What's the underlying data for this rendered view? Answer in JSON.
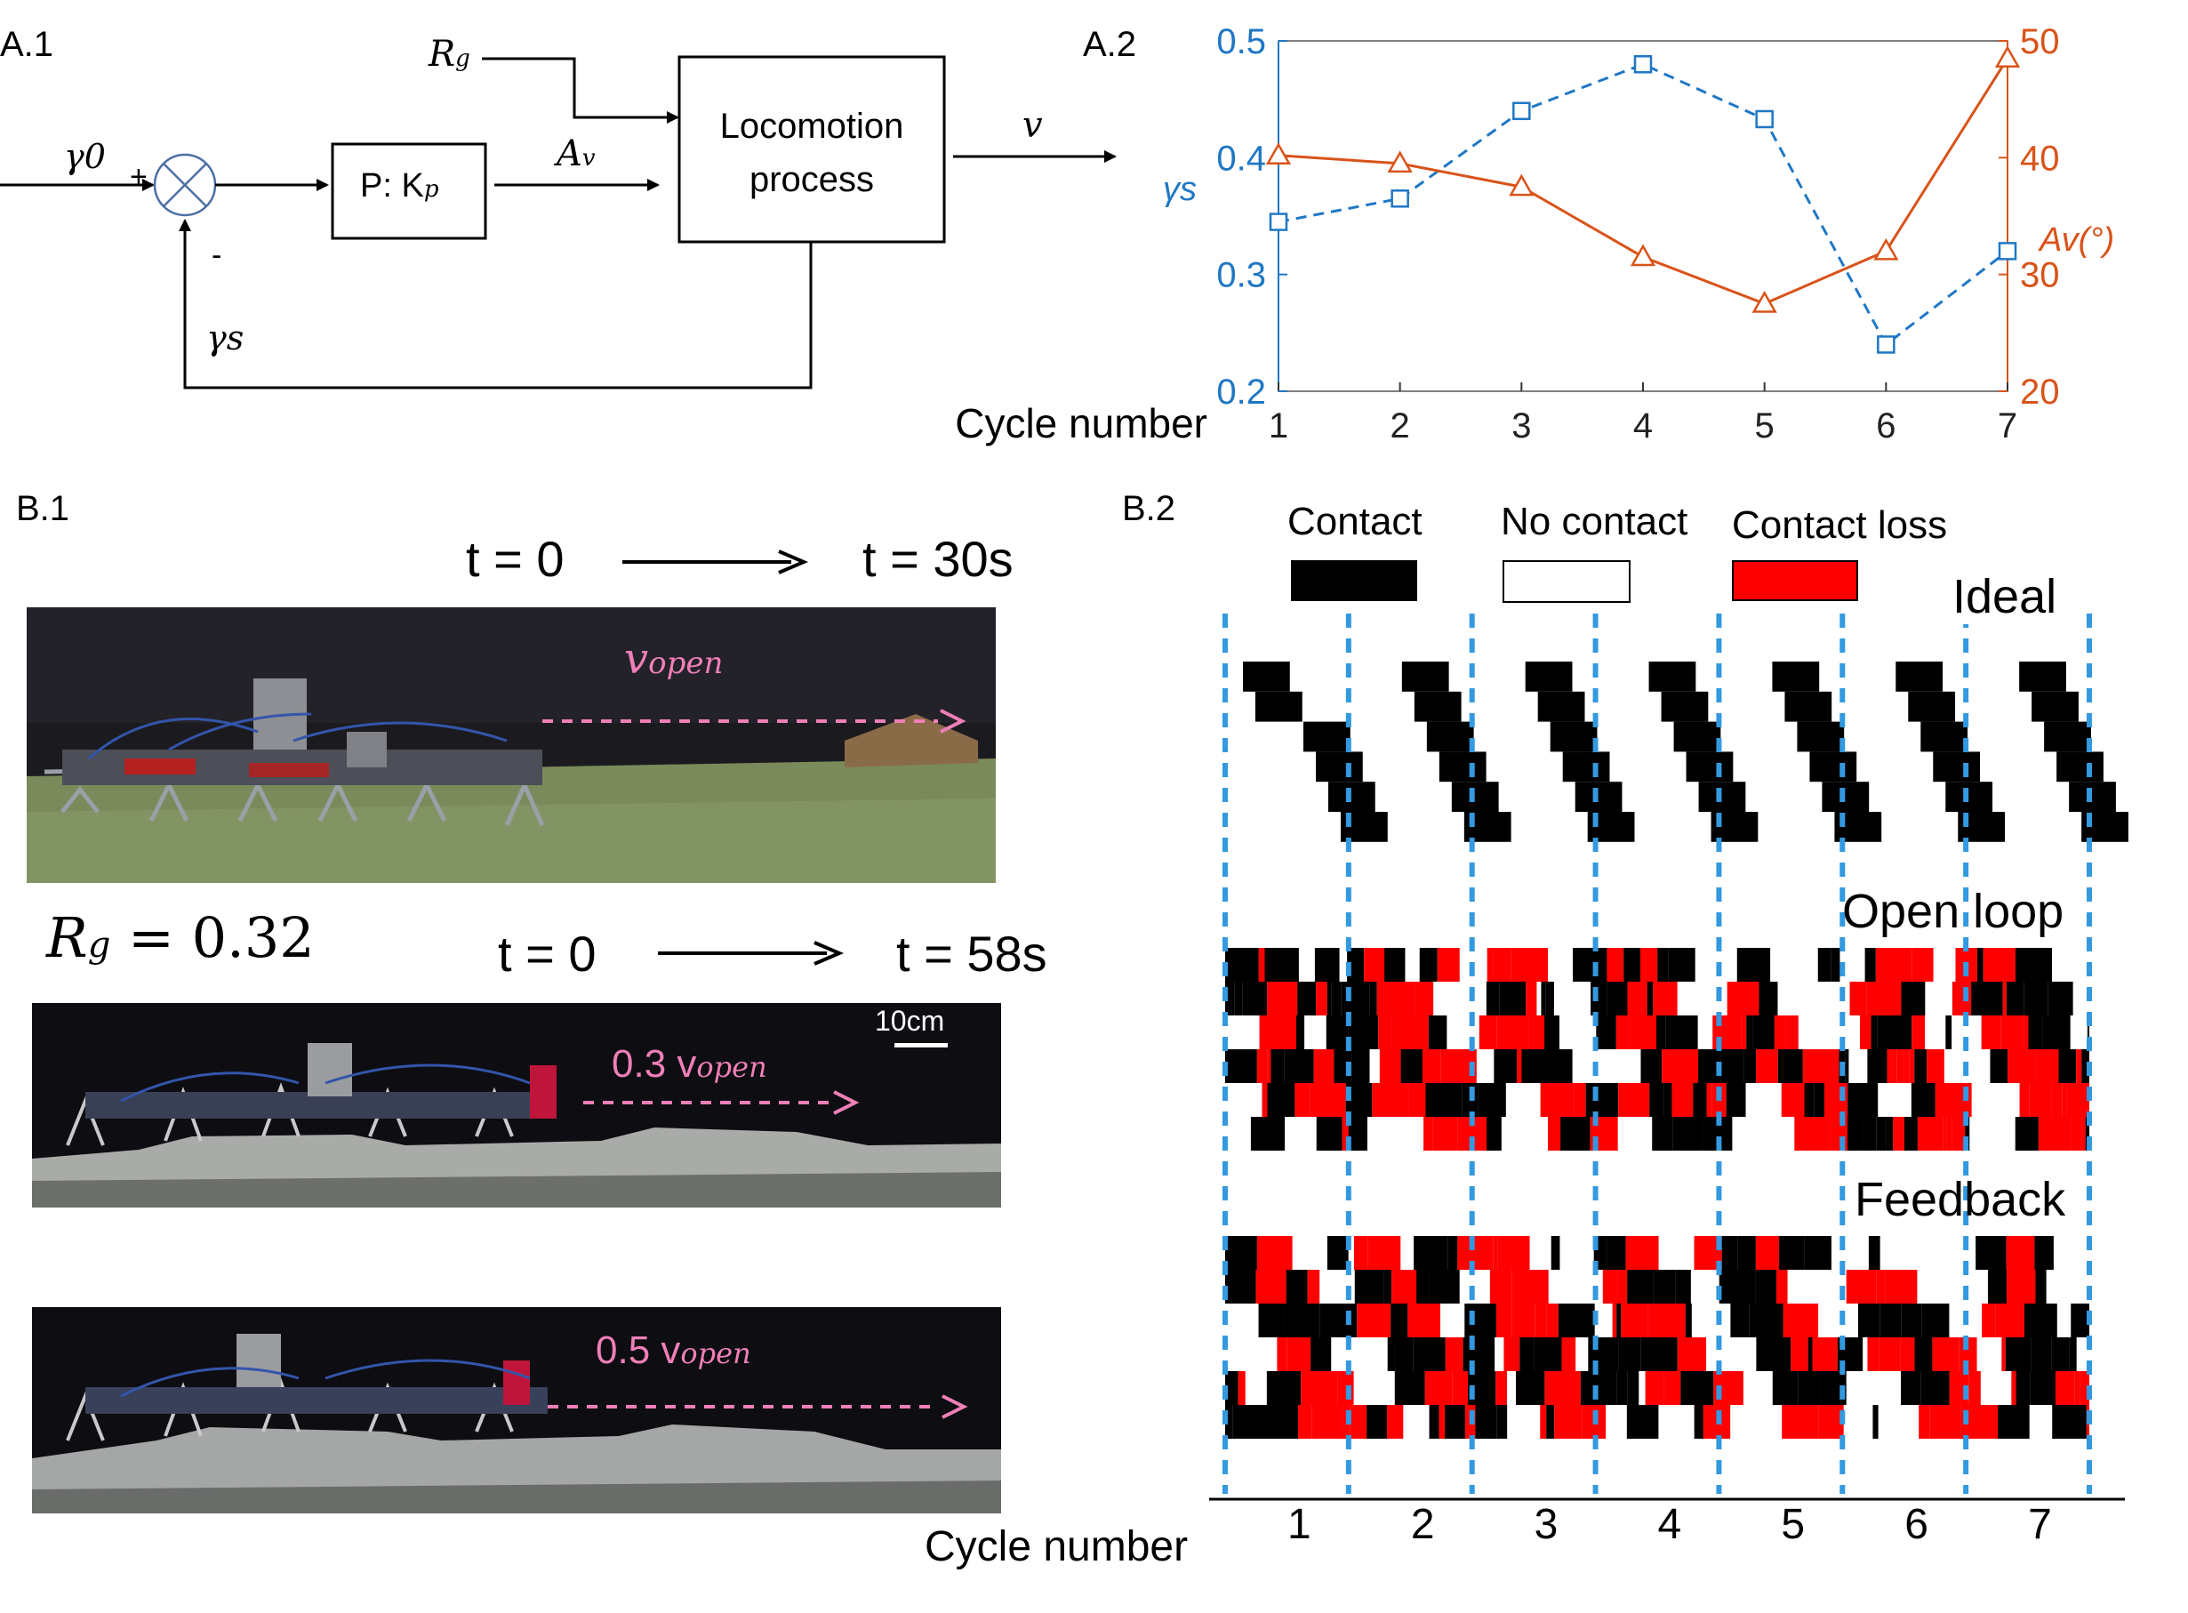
{
  "panels": {
    "a1": "A.1",
    "a2": "A.2",
    "b1": "B.1",
    "b2": "B.2"
  },
  "block_diagram": {
    "gamma0": "γ0",
    "plus": "+",
    "minus": "-",
    "controller": "P: K",
    "controller_sub": "p",
    "av": "A",
    "av_sub": "v",
    "rg": "R",
    "rg_sub": "g",
    "process_line1": "Locomotion",
    "process_line2": "process",
    "v": "v",
    "gammas": "γs"
  },
  "chart_data": {
    "type": "line",
    "x": [
      1,
      2,
      3,
      4,
      5,
      6,
      7
    ],
    "xlabel": "Cycle number",
    "series": [
      {
        "name": "γs",
        "axis": "left",
        "color": "#1f77c4",
        "style": "dashed-square",
        "values": [
          0.345,
          0.365,
          0.44,
          0.48,
          0.433,
          0.24,
          0.32
        ]
      },
      {
        "name": "Av(°)",
        "axis": "right",
        "color": "#d95319",
        "style": "solid-triangle",
        "values": [
          40.2,
          39.5,
          37.5,
          31.5,
          27.5,
          32.0,
          48.5
        ]
      }
    ],
    "ylim_left": [
      0.2,
      0.5
    ],
    "yticks_left": [
      "0.2",
      "0.3",
      "0.4",
      "0.5"
    ],
    "ylim_right": [
      20,
      50
    ],
    "yticks_right": [
      "20",
      "30",
      "40",
      "50"
    ],
    "ylabel_left": "γs",
    "ylabel_right": "Av(°)"
  },
  "b1": {
    "time1_start": "t = 0",
    "time1_end": "t = 30s",
    "v_open": "v",
    "v_open_sub": "open",
    "rg_label": "R",
    "rg_sub": "g",
    "rg_value": "= 0.32",
    "time2_start": "t = 0",
    "time2_end": "t = 58s",
    "scale": "10cm",
    "speed2": "0.3 v",
    "speed2_sub": "open",
    "speed3": "0.5 v",
    "speed3_sub": "open"
  },
  "b2": {
    "legend": [
      "Contact",
      "No contact",
      "Contact loss"
    ],
    "legend_colors": [
      "#000000",
      "#ffffff",
      "#ff0000"
    ],
    "ideal": "Ideal",
    "open_loop": "Open loop",
    "feedback": "Feedback",
    "xlabel": "Cycle number",
    "cycles": [
      "1",
      "2",
      "3",
      "4",
      "5",
      "6",
      "7"
    ]
  }
}
